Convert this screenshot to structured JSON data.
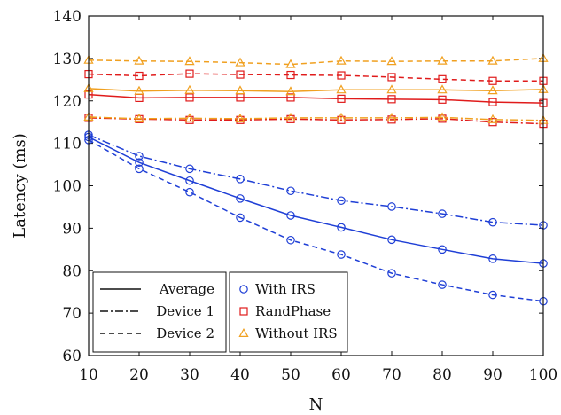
{
  "chart_data": {
    "type": "line",
    "title": "",
    "xlabel": "N",
    "ylabel": "Latency (ms)",
    "xlim": [
      10,
      100
    ],
    "ylim": [
      60,
      140
    ],
    "x": [
      10,
      20,
      30,
      40,
      50,
      60,
      70,
      80,
      90,
      100
    ],
    "xticks": [
      "10",
      "20",
      "30",
      "40",
      "50",
      "60",
      "70",
      "80",
      "90",
      "100"
    ],
    "yticks": [
      "60",
      "70",
      "80",
      "90",
      "100",
      "110",
      "120",
      "130",
      "140"
    ],
    "grid": false,
    "legend_linestyles": {
      "placement": "bottom-left",
      "entries": [
        {
          "label": "Average",
          "dash": "solid"
        },
        {
          "label": "Device 1",
          "dash": "dashdot"
        },
        {
          "label": "Device 2",
          "dash": "dashed"
        }
      ]
    },
    "legend_methods": {
      "placement": "bottom-center",
      "entries": [
        {
          "label": "With IRS",
          "marker": "circle",
          "color": "#1f3fd6"
        },
        {
          "label": "RandPhase",
          "marker": "square",
          "color": "#e01b1b"
        },
        {
          "label": "Without IRS",
          "marker": "triangle",
          "color": "#f0a020"
        }
      ]
    },
    "series": [
      {
        "method": "With IRS",
        "metric": "Average",
        "color": "#1f3fd6",
        "marker": "circle",
        "dash": "solid",
        "values": [
          111.5,
          105.5,
          101.2,
          97.0,
          93.0,
          90.2,
          87.3,
          85.0,
          82.8,
          81.7
        ]
      },
      {
        "method": "With IRS",
        "metric": "Device 1",
        "color": "#1f3fd6",
        "marker": "circle",
        "dash": "dashdot",
        "values": [
          112.0,
          107.0,
          104.0,
          101.6,
          98.8,
          96.5,
          95.1,
          93.4,
          91.4,
          90.7
        ]
      },
      {
        "method": "With IRS",
        "metric": "Device 2",
        "color": "#1f3fd6",
        "marker": "circle",
        "dash": "dashed",
        "values": [
          110.8,
          104.0,
          98.5,
          92.5,
          87.2,
          83.8,
          79.4,
          76.7,
          74.3,
          72.8
        ]
      },
      {
        "method": "RandPhase",
        "metric": "Average",
        "color": "#e01b1b",
        "marker": "square",
        "dash": "solid",
        "values": [
          121.5,
          120.7,
          120.8,
          120.8,
          120.8,
          120.5,
          120.4,
          120.3,
          119.7,
          119.5
        ]
      },
      {
        "method": "RandPhase",
        "metric": "Device 1",
        "color": "#e01b1b",
        "marker": "square",
        "dash": "dashdot",
        "values": [
          116.0,
          115.7,
          115.5,
          115.5,
          115.7,
          115.5,
          115.6,
          115.8,
          115.0,
          114.6
        ]
      },
      {
        "method": "RandPhase",
        "metric": "Device 2",
        "color": "#e01b1b",
        "marker": "square",
        "dash": "dashed",
        "values": [
          126.3,
          125.9,
          126.4,
          126.2,
          126.1,
          126.0,
          125.6,
          125.1,
          124.7,
          124.7
        ]
      },
      {
        "method": "Without IRS",
        "metric": "Average",
        "color": "#f0a020",
        "marker": "triangle",
        "dash": "solid",
        "values": [
          122.9,
          122.3,
          122.5,
          122.4,
          122.2,
          122.6,
          122.6,
          122.6,
          122.4,
          122.7
        ]
      },
      {
        "method": "Without IRS",
        "metric": "Device 1",
        "color": "#f0a020",
        "marker": "triangle",
        "dash": "dashdot",
        "values": [
          116.2,
          115.8,
          115.9,
          115.8,
          116.0,
          116.0,
          116.0,
          116.1,
          115.6,
          115.4
        ]
      },
      {
        "method": "Without IRS",
        "metric": "Device 2",
        "color": "#f0a020",
        "marker": "triangle",
        "dash": "dashed",
        "values": [
          129.6,
          129.4,
          129.3,
          129.0,
          128.6,
          129.4,
          129.3,
          129.4,
          129.4,
          130.0
        ]
      }
    ]
  }
}
